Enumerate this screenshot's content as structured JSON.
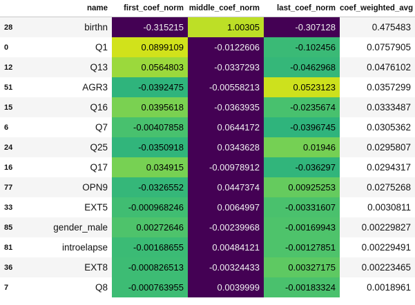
{
  "columns": {
    "index": "",
    "name": "name",
    "first": "first_coef_norm",
    "middle": "middle_coef_norm",
    "last": "last_coef_norm",
    "avg": "coef_weighted_avg"
  },
  "rows": [
    {
      "idx": "28",
      "name": "birthn",
      "first": "-0.315215",
      "middle": "1.00305",
      "last": "-0.307128",
      "avg": "0.475483"
    },
    {
      "idx": "0",
      "name": "Q1",
      "first": "0.0899109",
      "middle": "-0.0122606",
      "last": "-0.102456",
      "avg": "0.0757905"
    },
    {
      "idx": "12",
      "name": "Q13",
      "first": "0.0564803",
      "middle": "-0.0337293",
      "last": "-0.0462968",
      "avg": "0.0476102"
    },
    {
      "idx": "51",
      "name": "AGR3",
      "first": "-0.0392475",
      "middle": "-0.00558213",
      "last": "0.0523123",
      "avg": "0.0357299"
    },
    {
      "idx": "15",
      "name": "Q16",
      "first": "0.0395618",
      "middle": "-0.0363935",
      "last": "-0.0235674",
      "avg": "0.0333487"
    },
    {
      "idx": "6",
      "name": "Q7",
      "first": "-0.00407858",
      "middle": "0.0644172",
      "last": "-0.0396745",
      "avg": "0.0305362"
    },
    {
      "idx": "24",
      "name": "Q25",
      "first": "-0.0350918",
      "middle": "0.0343628",
      "last": "0.01946",
      "avg": "0.0295807"
    },
    {
      "idx": "16",
      "name": "Q17",
      "first": "0.034915",
      "middle": "-0.00978912",
      "last": "-0.036297",
      "avg": "0.0294317"
    },
    {
      "idx": "77",
      "name": "OPN9",
      "first": "-0.0326552",
      "middle": "0.0447374",
      "last": "0.00925253",
      "avg": "0.0275268"
    },
    {
      "idx": "33",
      "name": "EXT5",
      "first": "-0.000968246",
      "middle": "0.0064997",
      "last": "-0.00331607",
      "avg": "0.0030811"
    },
    {
      "idx": "85",
      "name": "gender_male",
      "first": "0.00272646",
      "middle": "-0.00239968",
      "last": "-0.00169943",
      "avg": "0.00229827"
    },
    {
      "idx": "81",
      "name": "introelapse",
      "first": "-0.00168655",
      "middle": "0.00484121",
      "last": "-0.00127851",
      "avg": "0.00229491"
    },
    {
      "idx": "36",
      "name": "EXT8",
      "first": "-0.000826513",
      "middle": "-0.00324433",
      "last": "0.00327175",
      "avg": "0.00223465"
    },
    {
      "idx": "7",
      "name": "Q8",
      "first": "-0.000763955",
      "middle": "0.0039999",
      "last": "-0.00183324",
      "avg": "0.0018961"
    }
  ],
  "colors": {
    "first": [
      "#440154",
      "#d1e21b",
      "#9bd93c",
      "#2fb47c",
      "#7ad151",
      "#48c16e",
      "#31b57b",
      "#77d153",
      "#35b779",
      "#40bd72",
      "#4ec36b",
      "#3bbb75",
      "#3dbc74",
      "#3dbc74"
    ],
    "middle": [
      "#bddf26",
      "#440154",
      "#440154",
      "#440154",
      "#440154",
      "#440154",
      "#440154",
      "#440154",
      "#440154",
      "#440154",
      "#440154",
      "#440154",
      "#440154",
      "#440154"
    ],
    "last": [
      "#440154",
      "#3aba76",
      "#35b779",
      "#cde11d",
      "#48c16e",
      "#2fb47c",
      "#75d054",
      "#31b57b",
      "#65cb5e",
      "#4ac16d",
      "#4ec36b",
      "#4ec36b",
      "#5ec962",
      "#4ac16d"
    ]
  }
}
